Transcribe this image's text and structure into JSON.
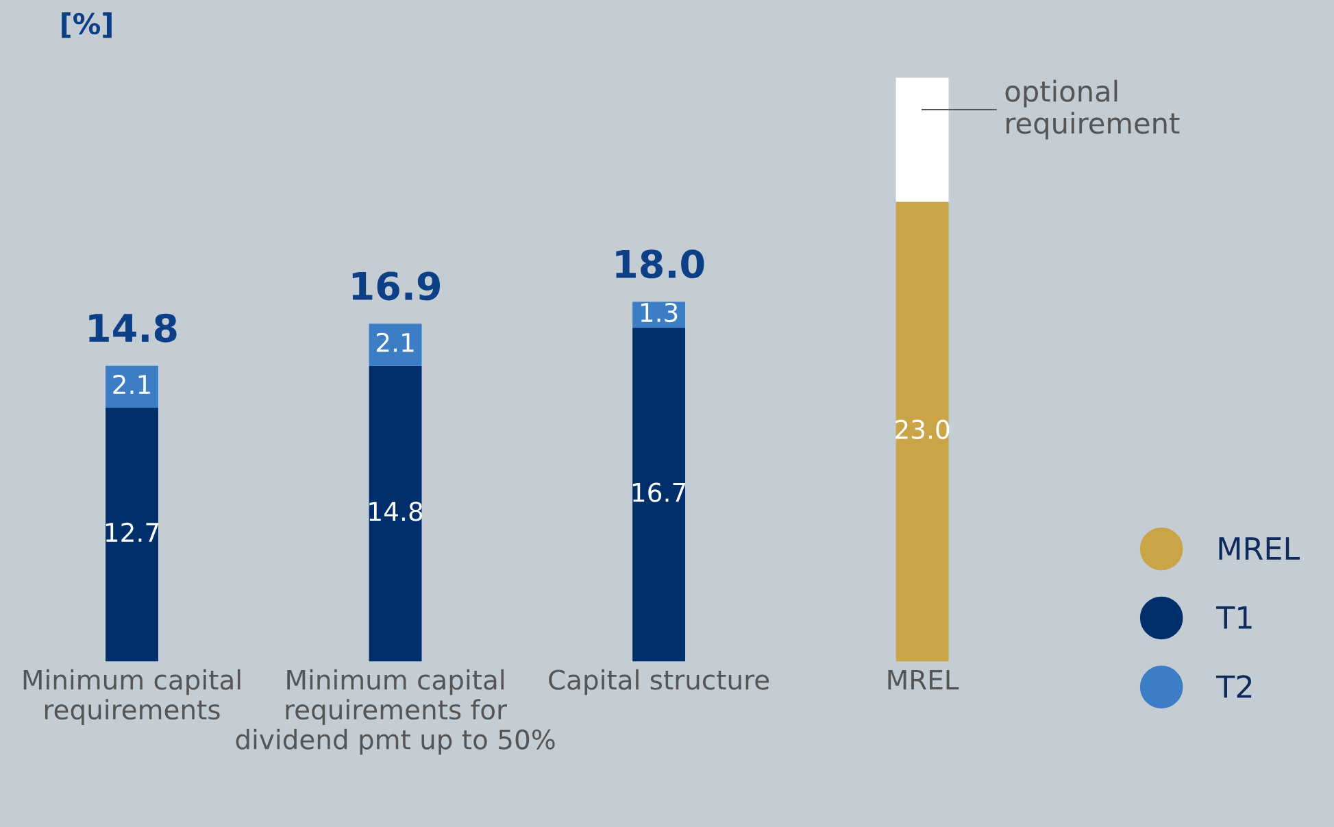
{
  "chart_data": {
    "type": "bar",
    "stacked": true,
    "ylabel": "[%]",
    "categories": [
      "Minimum capital requirements",
      "Minimum capital requirements for dividend pmt up to 50%",
      "Capital structure",
      "MREL"
    ],
    "series": [
      {
        "name": "T1",
        "color": "#002f6c",
        "values": [
          12.7,
          14.8,
          16.7,
          null
        ],
        "value_labels": [
          "12.7",
          "14.8",
          "16.7",
          null
        ]
      },
      {
        "name": "T2",
        "color": "#3b7ec6",
        "values": [
          2.1,
          2.1,
          1.3,
          null
        ],
        "value_labels": [
          "2.1",
          "2.1",
          "1.3",
          null
        ]
      },
      {
        "name": "MREL",
        "color": "#c9a548",
        "values": [
          null,
          null,
          null,
          23.0
        ],
        "value_labels": [
          null,
          null,
          null,
          "23.0"
        ]
      },
      {
        "name": "optional requirement",
        "color": "#ffffff",
        "values": [
          null,
          null,
          null,
          6.2
        ]
      }
    ],
    "totals": [
      "14.8",
      "16.9",
      "18.0",
      null
    ],
    "tick_labels": "x",
    "grid": false,
    "legend": "right"
  }
}
